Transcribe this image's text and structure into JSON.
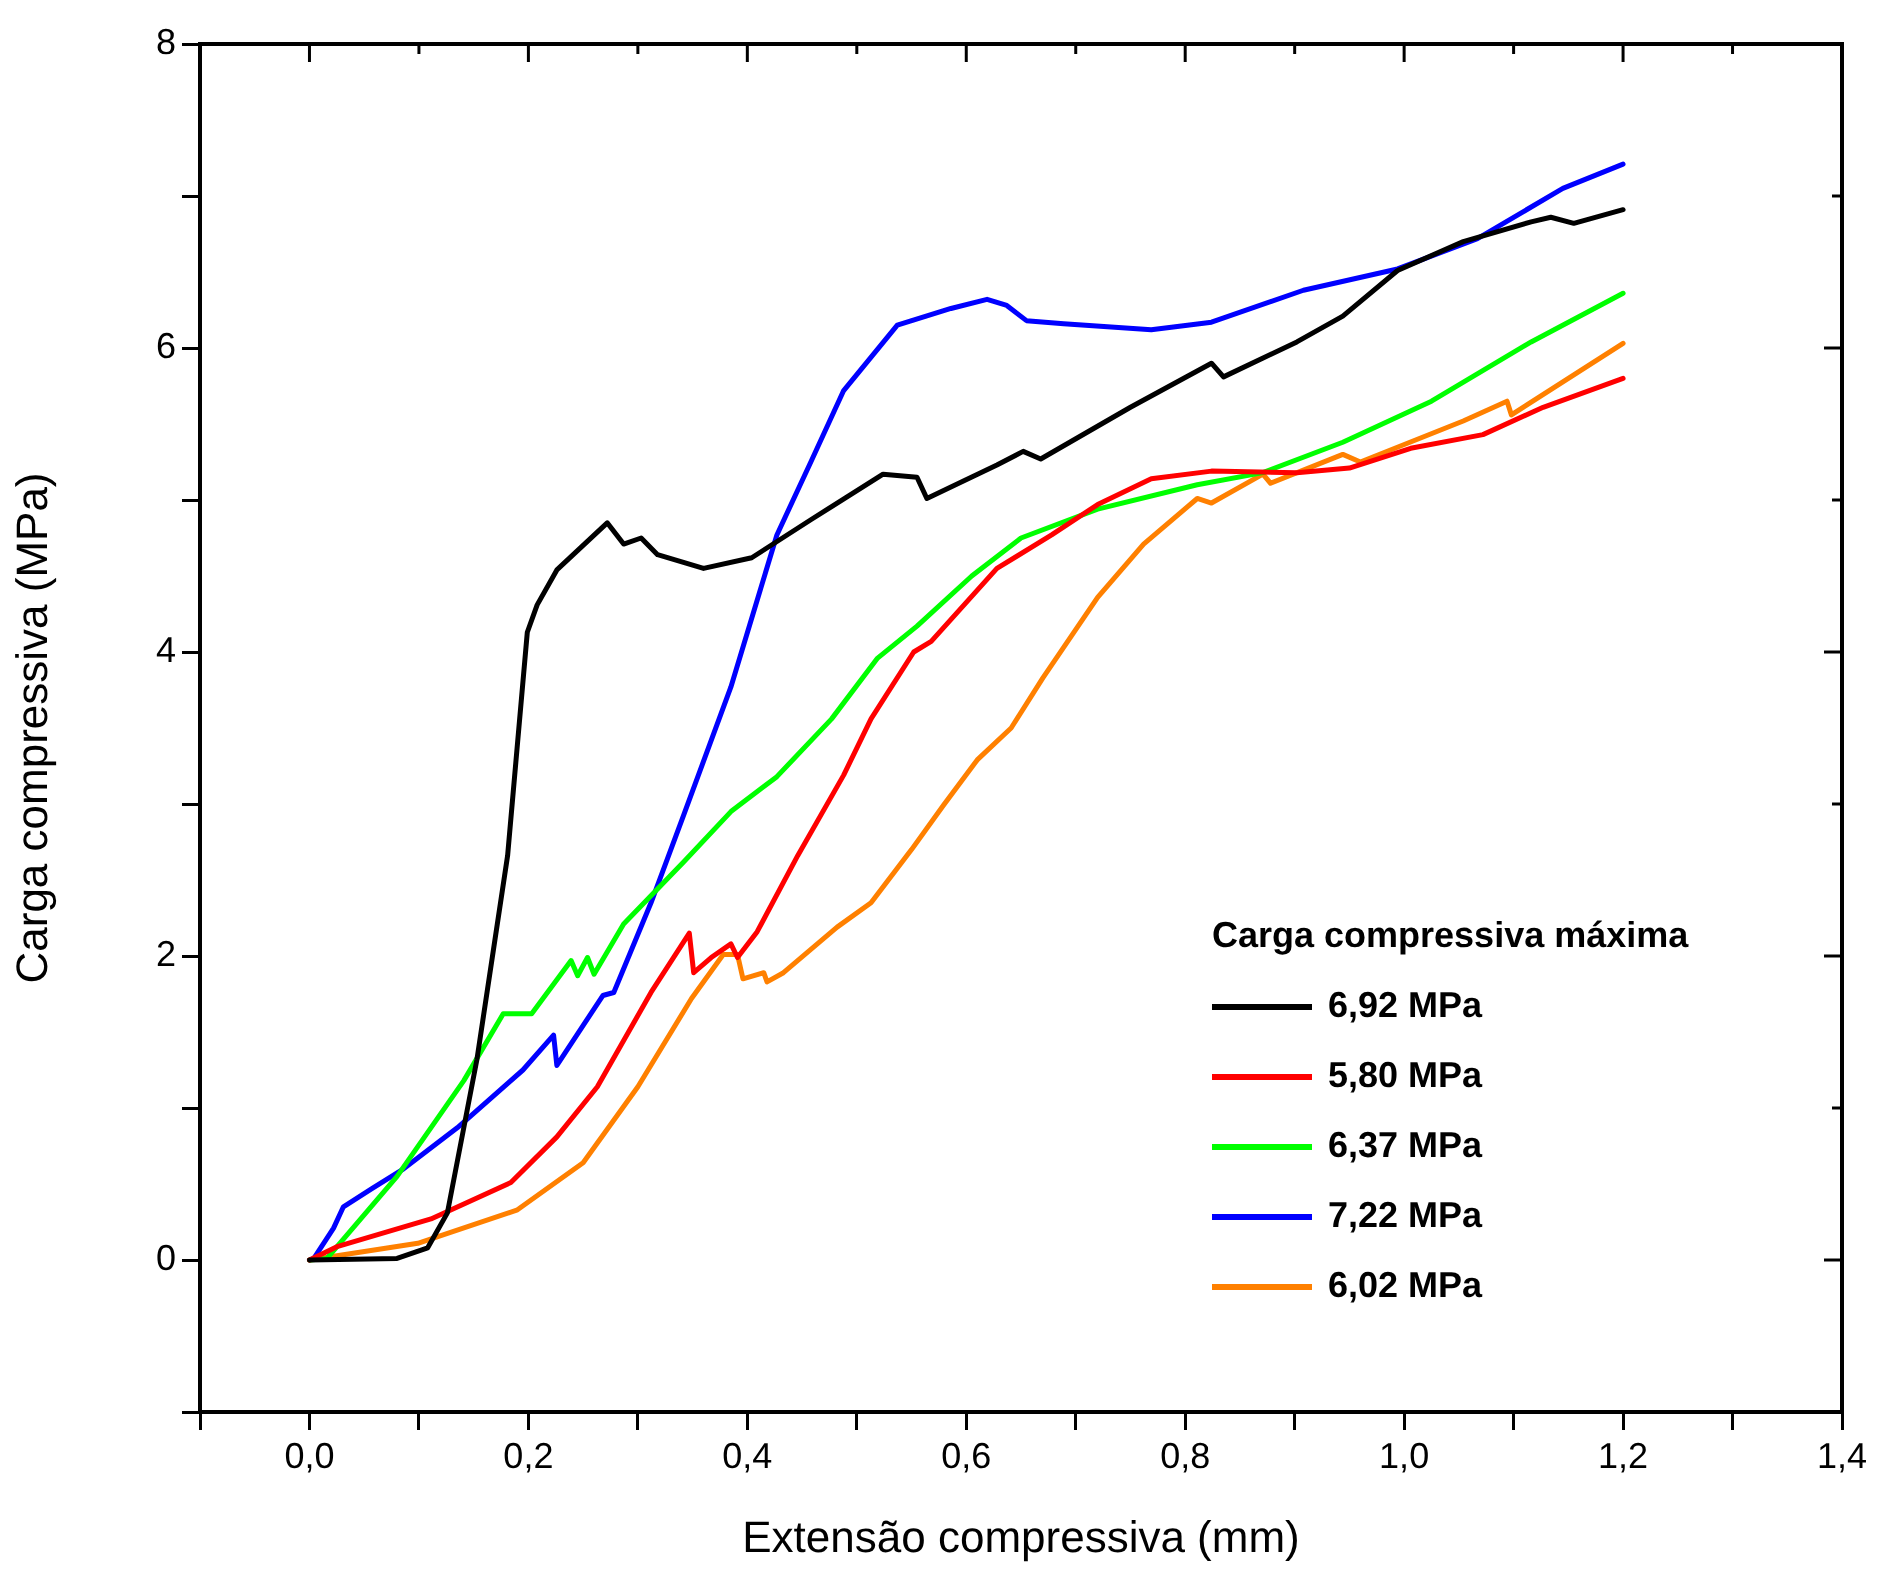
{
  "chart_data": {
    "type": "line",
    "xlabel": "Extensão compressiva (mm)",
    "ylabel": "Carga compressiva (MPa)",
    "legend_title": "Carga compressiva máxima",
    "legend": "bottom right",
    "xlim": [
      -0.1,
      1.4
    ],
    "xticks": [
      {
        "value": -0.1,
        "label": null
      },
      {
        "value": 0,
        "label": "0,0"
      },
      {
        "value": 0.1,
        "label": null
      },
      {
        "value": 0.2,
        "label": "0,2"
      },
      {
        "value": 0.3,
        "label": null
      },
      {
        "value": 0.4,
        "label": "0,4"
      },
      {
        "value": 0.5,
        "label": null
      },
      {
        "value": 0.6,
        "label": "0,6"
      },
      {
        "value": 0.7,
        "label": null
      },
      {
        "value": 0.8,
        "label": "0,8"
      },
      {
        "value": 0.9,
        "label": null
      },
      {
        "value": 1.0,
        "label": "1,0"
      },
      {
        "value": 1.1,
        "label": null
      },
      {
        "value": 1.2,
        "label": "1,2"
      },
      {
        "value": 1.3,
        "label": null
      },
      {
        "value": 1.4,
        "label": "1,4"
      }
    ],
    "ylim": [
      -1,
      8
    ],
    "yticks": [
      {
        "value": -1,
        "label": null
      },
      0,
      {
        "value": 1,
        "label": null
      },
      2,
      {
        "value": 3,
        "label": null
      },
      4,
      {
        "value": 5,
        "label": null
      },
      6,
      {
        "value": 7,
        "label": null
      },
      8
    ],
    "series": [
      {
        "name": "6,92 MPa",
        "color": "#000000",
        "x": [
          0,
          0.08,
          0.108,
          0.126,
          0.153,
          0.181,
          0.199,
          0.208,
          0.226,
          0.272,
          0.287,
          0.303,
          0.318,
          0.36,
          0.404,
          0.458,
          0.524,
          0.555,
          0.564,
          0.628,
          0.652,
          0.668,
          0.75,
          0.824,
          0.835,
          0.902,
          0.944,
          0.994,
          1.054,
          1.116,
          1.134,
          1.155,
          1.2
        ],
        "values": [
          0,
          0.01,
          0.08,
          0.31,
          1.32,
          2.66,
          4.13,
          4.31,
          4.54,
          4.85,
          4.71,
          4.75,
          4.64,
          4.55,
          4.62,
          4.87,
          5.17,
          5.15,
          5.01,
          5.23,
          5.32,
          5.27,
          5.61,
          5.9,
          5.81,
          6.04,
          6.21,
          6.51,
          6.7,
          6.83,
          6.86,
          6.82,
          6.91
        ]
      },
      {
        "name": "5,80 MPa",
        "color": "#ff0000",
        "x": [
          0,
          0.026,
          0.111,
          0.184,
          0.226,
          0.263,
          0.312,
          0.347,
          0.351,
          0.367,
          0.385,
          0.391,
          0.409,
          0.446,
          0.488,
          0.513,
          0.552,
          0.568,
          0.628,
          0.678,
          0.72,
          0.769,
          0.824,
          0.902,
          0.95,
          1.006,
          1.072,
          1.127,
          1.2
        ],
        "values": [
          0,
          0.09,
          0.27,
          0.51,
          0.81,
          1.14,
          1.76,
          2.15,
          1.89,
          1.99,
          2.08,
          1.99,
          2.16,
          2.66,
          3.19,
          3.56,
          4.0,
          4.07,
          4.55,
          4.77,
          4.97,
          5.14,
          5.19,
          5.18,
          5.21,
          5.34,
          5.43,
          5.61,
          5.8
        ]
      },
      {
        "name": "6,37 MPa",
        "color": "#00ff00",
        "x": [
          0,
          0.016,
          0.08,
          0.141,
          0.177,
          0.203,
          0.239,
          0.245,
          0.254,
          0.26,
          0.287,
          0.342,
          0.385,
          0.427,
          0.477,
          0.519,
          0.555,
          0.605,
          0.65,
          0.72,
          0.811,
          0.871,
          0.944,
          1.025,
          1.116,
          1.2
        ],
        "values": [
          0,
          0.01,
          0.55,
          1.18,
          1.62,
          1.62,
          1.97,
          1.87,
          1.99,
          1.88,
          2.21,
          2.62,
          2.95,
          3.18,
          3.56,
          3.96,
          4.17,
          4.5,
          4.75,
          4.94,
          5.1,
          5.18,
          5.38,
          5.65,
          6.04,
          6.36
        ]
      },
      {
        "name": "7,22 MPa",
        "color": "#0000ff",
        "x": [
          0,
          0.004,
          0.022,
          0.031,
          0.057,
          0.086,
          0.135,
          0.195,
          0.223,
          0.226,
          0.268,
          0.278,
          0.312,
          0.342,
          0.385,
          0.427,
          0.458,
          0.488,
          0.537,
          0.586,
          0.619,
          0.637,
          0.655,
          0.689,
          0.769,
          0.824,
          0.908,
          0.994,
          1.067,
          1.145,
          1.2
        ],
        "values": [
          0,
          0.01,
          0.21,
          0.35,
          0.47,
          0.6,
          0.87,
          1.25,
          1.48,
          1.28,
          1.74,
          1.76,
          2.35,
          2.93,
          3.77,
          4.77,
          5.25,
          5.72,
          6.15,
          6.26,
          6.32,
          6.28,
          6.18,
          6.16,
          6.12,
          6.17,
          6.38,
          6.52,
          6.72,
          7.05,
          7.21
        ]
      },
      {
        "name": "6,02 MPa",
        "color": "#ff8000",
        "x": [
          0,
          0.099,
          0.19,
          0.25,
          0.3,
          0.349,
          0.378,
          0.391,
          0.396,
          0.415,
          0.418,
          0.433,
          0.482,
          0.513,
          0.55,
          0.579,
          0.61,
          0.641,
          0.67,
          0.72,
          0.762,
          0.811,
          0.824,
          0.871,
          0.878,
          0.944,
          0.96,
          1.054,
          1.094,
          1.098,
          1.2
        ],
        "values": [
          0,
          0.11,
          0.33,
          0.64,
          1.14,
          1.72,
          2.01,
          2.01,
          1.85,
          1.89,
          1.83,
          1.89,
          2.19,
          2.35,
          2.7,
          2.99,
          3.29,
          3.5,
          3.83,
          4.36,
          4.71,
          5.01,
          4.98,
          5.17,
          5.11,
          5.3,
          5.25,
          5.52,
          5.65,
          5.56,
          6.03
        ]
      }
    ]
  }
}
